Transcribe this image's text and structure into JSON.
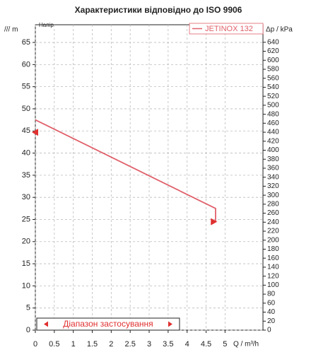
{
  "chart_data": {
    "type": "line",
    "title": "Характеристики відповідно до ISO 9906",
    "ylabel": "/// m",
    "ylabel_note": "Напір",
    "y2label": "Δp / kPa",
    "xlabel": "Q / m³/h",
    "range_label": "Діапазон застосування",
    "range": [
      0,
      3.8
    ],
    "xlim": [
      0,
      6
    ],
    "ylim": [
      0,
      69
    ],
    "y2lim": [
      0,
      679
    ],
    "xticks": [
      0,
      0.5,
      1,
      1.5,
      2,
      2.5,
      3,
      3.5,
      4,
      4.5,
      5
    ],
    "yticks": [
      0,
      5,
      10,
      15,
      20,
      25,
      30,
      35,
      40,
      45,
      50,
      55,
      60,
      65
    ],
    "y2ticks": [
      0,
      20,
      40,
      60,
      80,
      100,
      120,
      140,
      160,
      180,
      200,
      220,
      240,
      260,
      280,
      300,
      320,
      340,
      360,
      380,
      400,
      420,
      440,
      460,
      480,
      500,
      520,
      540,
      560,
      580,
      600,
      620,
      640
    ],
    "grid": true,
    "legend": "upper right",
    "series": [
      {
        "name": "JETINOX 132",
        "color": "#e0606a",
        "x": [
          0,
          4.75,
          4.75
        ],
        "values": [
          47.5,
          27.5,
          24.5
        ]
      }
    ],
    "markers": [
      {
        "x": 0,
        "y": 44.7,
        "direction": "left"
      },
      {
        "x": 4.7,
        "y": 24.5,
        "direction": "right"
      }
    ]
  }
}
